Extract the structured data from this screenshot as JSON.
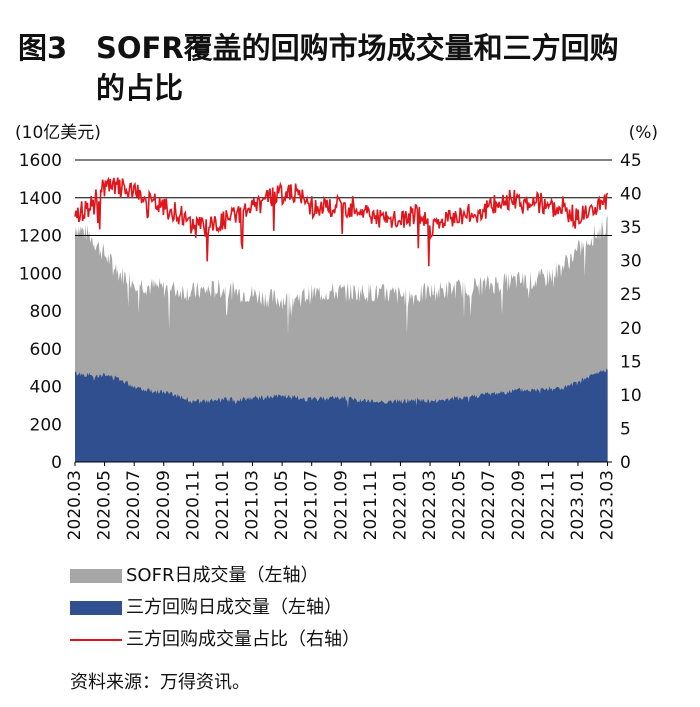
{
  "title": {
    "figure": "图3",
    "line1": "SOFR覆盖的回购市场成交量和三方回购",
    "line2": "的占比"
  },
  "colors": {
    "sofr": "#a6a6a6",
    "triparty": "#2f4f8f",
    "share": "#e0161d",
    "grid": "#000000"
  },
  "chart_data": {
    "type": "area",
    "left_axis": {
      "unit": "(10亿美元)",
      "min": 0,
      "max": 1600,
      "ticks": [
        "0",
        "200",
        "400",
        "600",
        "800",
        "1000",
        "1200",
        "1400",
        "1600"
      ]
    },
    "right_axis": {
      "unit": "(%)",
      "min": 0,
      "max": 45,
      "ticks": [
        "0",
        "5",
        "10",
        "15",
        "20",
        "25",
        "30",
        "35",
        "40",
        "45"
      ]
    },
    "x_ticks": [
      "2020.03",
      "2020.05",
      "2020.07",
      "2020.09",
      "2020.11",
      "2021.01",
      "2021.03",
      "2021.05",
      "2021.07",
      "2021.09",
      "2021.11",
      "2022.01",
      "2022.03",
      "2022.05",
      "2022.07",
      "2022.09",
      "2022.11",
      "2023.01",
      "2023.03"
    ],
    "grid_lines_at": [
      1200,
      1400,
      1600
    ],
    "series": [
      {
        "name": "SOFR日成交量（左轴）",
        "axis": "left",
        "x": [
          "2020.03",
          "2020.04",
          "2020.05",
          "2020.06",
          "2020.07",
          "2020.08",
          "2020.09",
          "2020.10",
          "2020.11",
          "2020.12",
          "2021.01",
          "2021.02",
          "2021.03",
          "2021.04",
          "2021.05",
          "2021.06",
          "2021.07",
          "2021.08",
          "2021.09",
          "2021.10",
          "2021.11",
          "2021.12",
          "2022.01",
          "2022.02",
          "2022.03",
          "2022.04",
          "2022.05",
          "2022.06",
          "2022.07",
          "2022.08",
          "2022.09",
          "2022.10",
          "2022.11",
          "2022.12",
          "2023.01",
          "2023.02",
          "2023.03"
        ],
        "values": [
          1250,
          1200,
          1100,
          1000,
          960,
          930,
          920,
          910,
          900,
          910,
          920,
          900,
          890,
          870,
          860,
          870,
          890,
          900,
          900,
          900,
          900,
          890,
          880,
          880,
          900,
          910,
          920,
          930,
          940,
          950,
          960,
          960,
          980,
          1040,
          1120,
          1200,
          1250
        ]
      },
      {
        "name": "三方回购日成交量（左轴）",
        "axis": "left",
        "x": [
          "2020.03",
          "2020.04",
          "2020.05",
          "2020.06",
          "2020.07",
          "2020.08",
          "2020.09",
          "2020.10",
          "2020.11",
          "2020.12",
          "2021.01",
          "2021.02",
          "2021.03",
          "2021.04",
          "2021.05",
          "2021.06",
          "2021.07",
          "2021.08",
          "2021.09",
          "2021.10",
          "2021.11",
          "2021.12",
          "2022.01",
          "2022.02",
          "2022.03",
          "2022.04",
          "2022.05",
          "2022.06",
          "2022.07",
          "2022.08",
          "2022.09",
          "2022.10",
          "2022.11",
          "2022.12",
          "2023.01",
          "2023.02",
          "2023.03"
        ],
        "values": [
          470,
          460,
          460,
          440,
          400,
          380,
          370,
          350,
          320,
          320,
          330,
          330,
          340,
          340,
          350,
          340,
          330,
          340,
          340,
          330,
          320,
          320,
          320,
          330,
          320,
          330,
          340,
          350,
          360,
          370,
          380,
          380,
          390,
          390,
          420,
          460,
          490
        ]
      },
      {
        "name": "三方回购成交量占比（右轴）",
        "axis": "right",
        "x": [
          "2020.03",
          "2020.04",
          "2020.05",
          "2020.06",
          "2020.07",
          "2020.08",
          "2020.09",
          "2020.10",
          "2020.11",
          "2020.12",
          "2021.01",
          "2021.02",
          "2021.03",
          "2021.04",
          "2021.05",
          "2021.06",
          "2021.07",
          "2021.08",
          "2021.09",
          "2021.10",
          "2021.11",
          "2021.12",
          "2022.01",
          "2022.02",
          "2022.03",
          "2022.04",
          "2022.05",
          "2022.06",
          "2022.07",
          "2022.08",
          "2022.09",
          "2022.10",
          "2022.11",
          "2022.12",
          "2023.01",
          "2023.02",
          "2023.03"
        ],
        "values": [
          37,
          38,
          41,
          41,
          40,
          39,
          38,
          37,
          35,
          35,
          36,
          37,
          38,
          39,
          40,
          40,
          38,
          38,
          38,
          38,
          37,
          36,
          36,
          37,
          35,
          36,
          37,
          37,
          38,
          39,
          39,
          39,
          38,
          38,
          36,
          38,
          39
        ]
      }
    ]
  },
  "legend": [
    {
      "label": "SOFR日成交量（左轴）"
    },
    {
      "label": "三方回购日成交量（左轴）"
    },
    {
      "label": "三方回购成交量占比（右轴）"
    }
  ],
  "source": "资料来源：万得资讯。"
}
